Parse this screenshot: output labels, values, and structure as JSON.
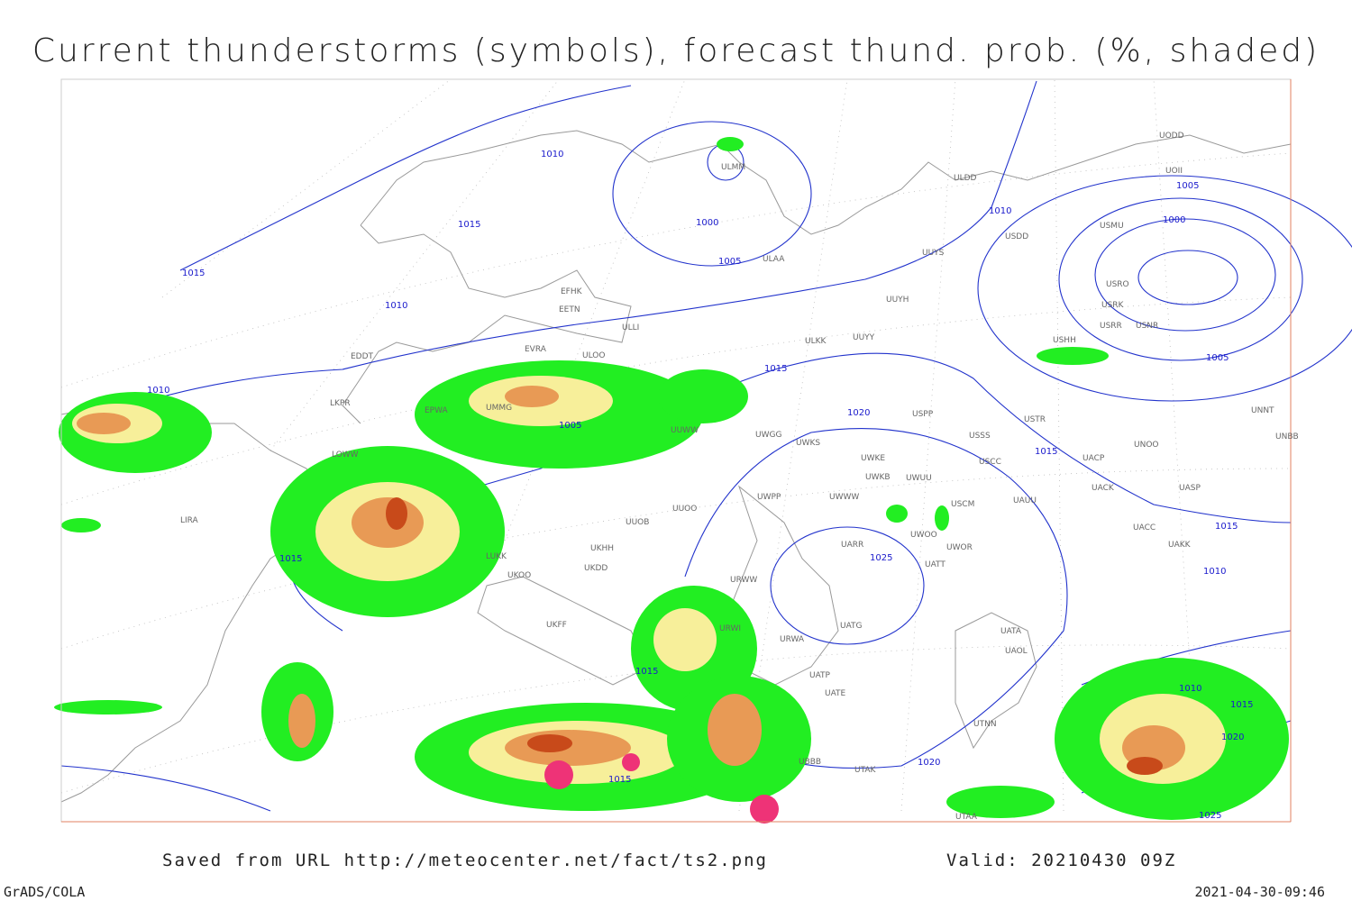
{
  "header": {
    "title": "Current thunderstorms (symbols), forecast thund. prob. (%, shaded)"
  },
  "footer": {
    "saved": "Saved from URL http://meteocenter.net/fact/ts2.png",
    "valid": "Valid: 20210430 09Z",
    "software": "GrADS/COLA",
    "timestamp": "2021-04-30-09:46"
  },
  "isobar_labels": [
    "1010",
    "1015",
    "1015",
    "1000",
    "1005",
    "1010",
    "1010",
    "1010",
    "1005",
    "1015",
    "1020",
    "1005",
    "1000",
    "1005",
    "1015",
    "1010",
    "1015",
    "1025",
    "1015",
    "1010",
    "1020",
    "1015",
    "1015",
    "1020",
    "1015",
    "1025"
  ],
  "stations": [
    "EFHK",
    "EETN",
    "ULLI",
    "ULAA",
    "ULMM",
    "ULDD",
    "UUYS",
    "UUYH",
    "ULKK",
    "UUYY",
    "EVRA",
    "ULOO",
    "EDDT",
    "LKPR",
    "EPWA",
    "UMMG",
    "UUWW",
    "UWGG",
    "UWKS",
    "LOWW",
    "UWKE",
    "UWKB",
    "UWUU",
    "UWPP",
    "UWWW",
    "UUOO",
    "UUOB",
    "UKHH",
    "UKDD",
    "LUKK",
    "UKOO",
    "URWW",
    "URWI",
    "URWA",
    "UATT",
    "UARR",
    "UWOO",
    "UWOR",
    "USCM",
    "UAUU",
    "USCC",
    "USSS",
    "USTR",
    "UNOO",
    "UACP",
    "UACK",
    "UASP",
    "UACC",
    "UAKK",
    "UNNT",
    "UNBB",
    "USDD",
    "USRO",
    "USRK",
    "USRR",
    "USNR",
    "USHH",
    "UOII",
    "UODD",
    "USMU",
    "UATG",
    "UATA",
    "UAOL",
    "UATP",
    "UATE",
    "UTNN",
    "UTAA",
    "UTAK",
    "UBBB",
    "LIRA",
    "UKFF",
    "USPP"
  ]
}
